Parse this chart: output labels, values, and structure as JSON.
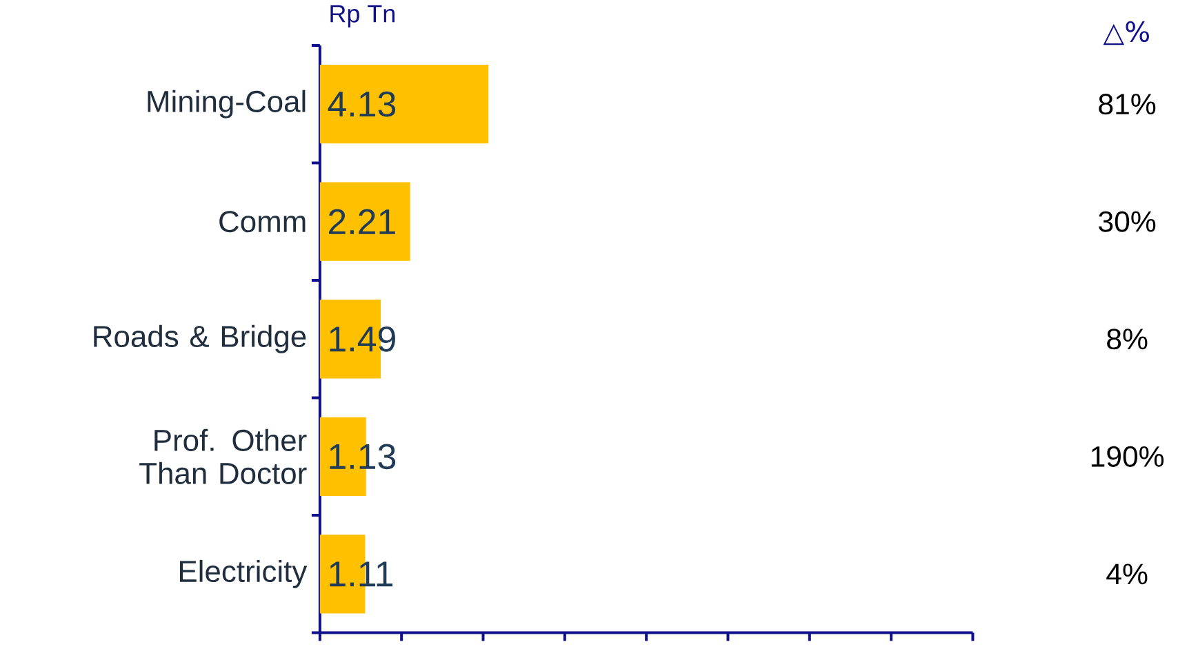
{
  "chart_data": {
    "type": "bar",
    "orientation": "horizontal",
    "xlabel": "Rp Tn",
    "categories": [
      "Mining-Coal",
      "Comm",
      "Roads & Bridge",
      "Prof. Other Than Doctor",
      "Electricity"
    ],
    "values": [
      4.13,
      2.21,
      1.49,
      1.13,
      1.11
    ],
    "color": "#ffc000",
    "data_labels": true,
    "xlim": [
      0,
      16
    ],
    "xticks": [
      {
        "value": 0,
        "label": null
      },
      {
        "value": 2,
        "label": null
      },
      {
        "value": 4,
        "label": null
      },
      {
        "value": 6,
        "label": null
      },
      {
        "value": 8,
        "label": null
      },
      {
        "value": 10,
        "label": null
      },
      {
        "value": 12,
        "label": null
      },
      {
        "value": 14,
        "label": null
      },
      {
        "value": 16,
        "label": null
      }
    ],
    "tick_labels": "y",
    "grid": false,
    "annotations": [
      "△%",
      "81%",
      "30%",
      "8%",
      "190%",
      "4%"
    ]
  }
}
